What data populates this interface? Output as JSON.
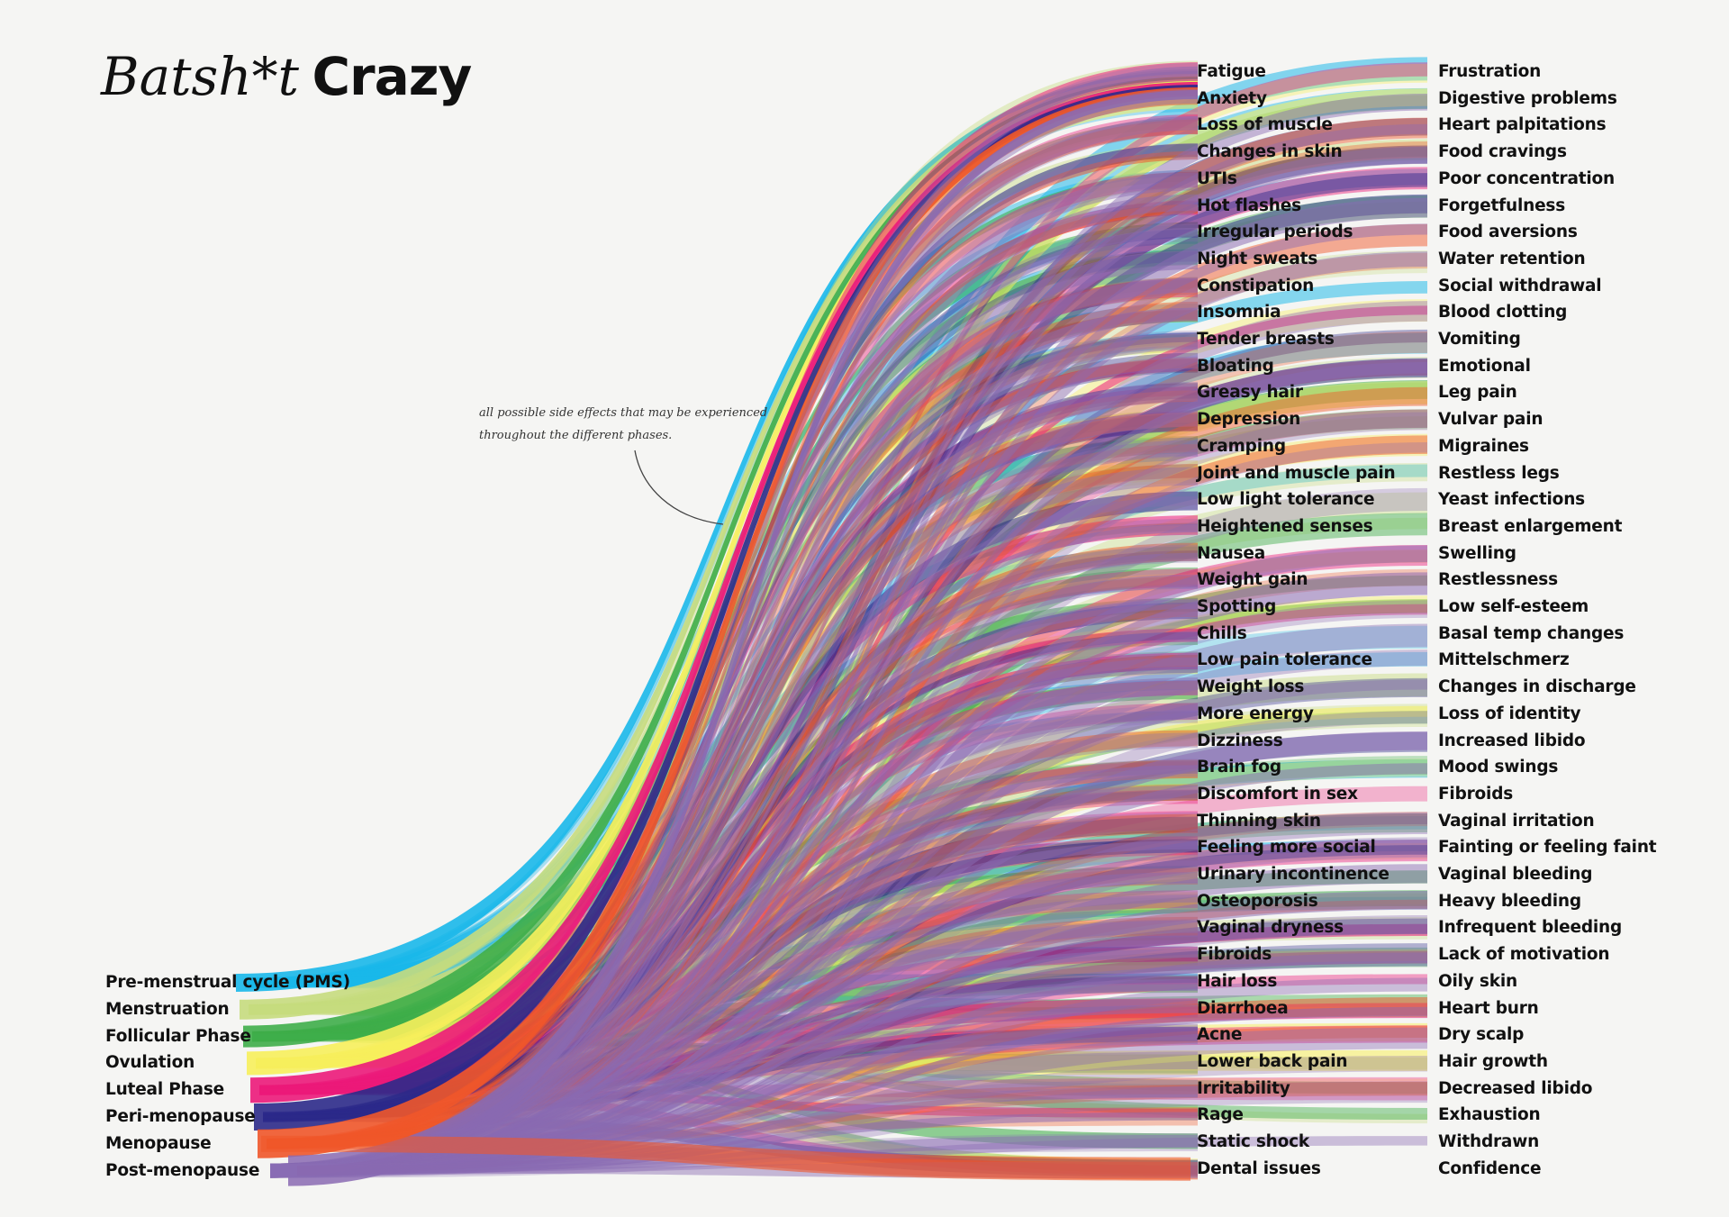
{
  "title": {
    "italic": "Batsh*t",
    "bold": "Crazy"
  },
  "annotation": "all possible side effects that may be experienced throughout the different phases.",
  "phases": [
    {
      "label": "Pre-menstrual cycle (PMS)",
      "color": "#1ab8ea"
    },
    {
      "label": "Menstruation",
      "color": "#c6dc7e"
    },
    {
      "label": "Follicular Phase",
      "color": "#3fae4a"
    },
    {
      "label": "Ovulation",
      "color": "#f7ef5c"
    },
    {
      "label": "Luteal Phase",
      "color": "#ec1a7a"
    },
    {
      "label": "Peri-menopause",
      "color": "#2c2a8a"
    },
    {
      "label": "Menopause",
      "color": "#f0572a"
    },
    {
      "label": "Post-menopause",
      "color": "#8a6ab2"
    }
  ],
  "symptoms_mid": [
    "Fatigue",
    "Anxiety",
    "Loss of muscle",
    "Changes in skin",
    "UTIs",
    "Hot flashes",
    "Irregular periods",
    "Night sweats",
    "Constipation",
    "Insomnia",
    "Tender breasts",
    "Bloating",
    "Greasy hair",
    "Depression",
    "Cramping",
    "Joint and muscle pain",
    "Low light tolerance",
    "Heightened senses",
    "Nausea",
    "Weight gain",
    "Spotting",
    "Chills",
    "Low pain tolerance",
    "Weight loss",
    "More energy",
    "Dizziness",
    "Brain fog",
    "Discomfort in sex",
    "Thinning skin",
    "Feeling more social",
    "Urinary incontinence",
    "Osteoporosis",
    "Vaginal dryness",
    "Fibroids",
    "Hair loss",
    "Diarrhoea",
    "Acne",
    "Lower back pain",
    "Irritability",
    "Rage",
    "Static shock",
    "Dental issues"
  ],
  "symptoms_right": [
    "Frustration",
    "Digestive problems",
    "Heart palpitations",
    "Food cravings",
    "Poor concentration",
    "Forgetfulness",
    "Food aversions",
    "Water retention",
    "Social withdrawal",
    "Blood clotting",
    "Vomiting",
    "Emotional",
    "Leg pain",
    "Vulvar pain",
    "Migraines",
    "Restless legs",
    "Yeast infections",
    "Breast enlargement",
    "Swelling",
    "Restlessness",
    "Low self-esteem",
    "Basal temp changes",
    "Mittelschmerz",
    "Changes in discharge",
    "Loss of identity",
    "Increased libido",
    "Mood swings",
    "Fibroids",
    "Vaginal irritation",
    "Fainting or feeling faint",
    "Vaginal bleeding",
    "Heavy bleeding",
    "Infrequent bleeding",
    "Lack of motivation",
    "Oily skin",
    "Heart burn",
    "Dry scalp",
    "Hair growth",
    "Decreased libido",
    "Exhaustion",
    "Withdrawn",
    "Confidence"
  ]
}
